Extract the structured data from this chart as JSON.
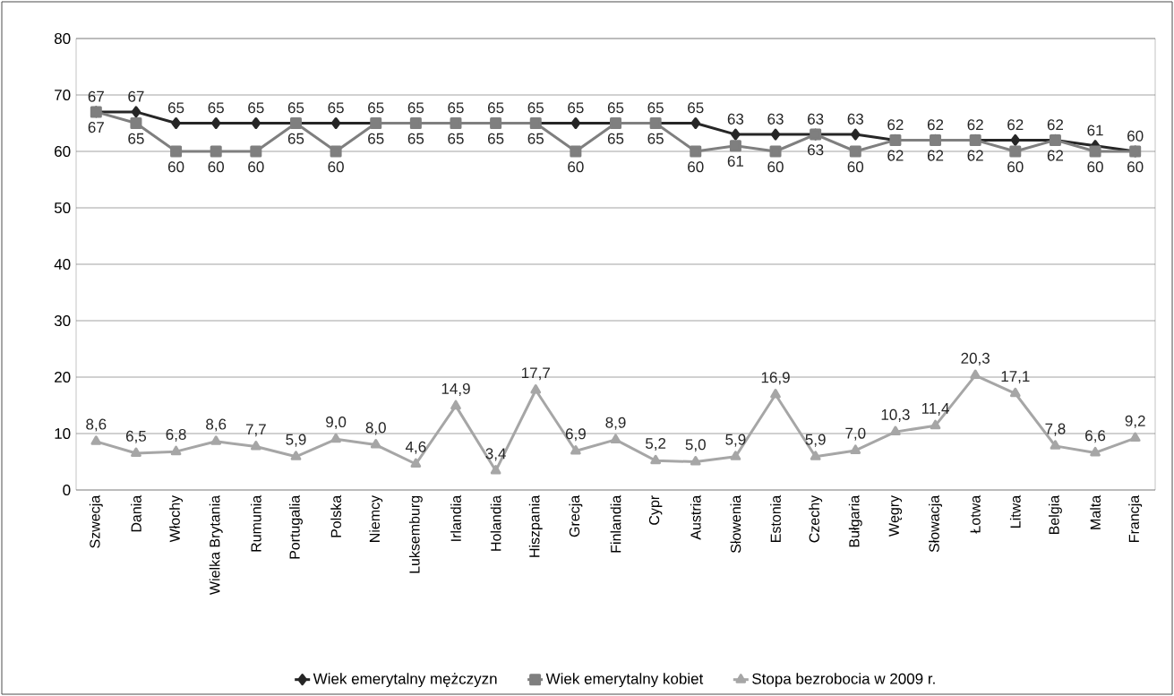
{
  "chart_data": {
    "type": "line",
    "categories": [
      "Szwecja",
      "Dania",
      "Włochy",
      "Wielka Brytania",
      "Rumunia",
      "Portugalia",
      "Polska",
      "Niemcy",
      "Luksemburg",
      "Irlandia",
      "Holandia",
      "Hiszpania",
      "Grecja",
      "Finlandia",
      "Cypr",
      "Austria",
      "Słowenia",
      "Estonia",
      "Czechy",
      "Bułgaria",
      "Węgry",
      "Słowacja",
      "Łotwa",
      "Litwa",
      "Belgia",
      "Malta",
      "Francja"
    ],
    "series": [
      {
        "name": "Wiek emerytalny mężczyzn",
        "color": "#262626",
        "marker": "diamond",
        "values": [
          67,
          67,
          65,
          65,
          65,
          65,
          65,
          65,
          65,
          65,
          65,
          65,
          65,
          65,
          65,
          65,
          63,
          63,
          63,
          63,
          62,
          62,
          62,
          62,
          62,
          61,
          60
        ],
        "value_labels": [
          "67",
          "67",
          "65",
          "65",
          "65",
          "65",
          "65",
          "65",
          "65",
          "65",
          "65",
          "65",
          "65",
          "65",
          "65",
          "65",
          "63",
          "63",
          "63",
          "63",
          "62",
          "62",
          "62",
          "62",
          "62",
          "61",
          "60"
        ]
      },
      {
        "name": "Wiek emerytalny kobiet",
        "color": "#7f7f7f",
        "marker": "square",
        "values": [
          67,
          65,
          60,
          60,
          60,
          65,
          60,
          65,
          65,
          65,
          65,
          65,
          60,
          65,
          65,
          60,
          61,
          60,
          63,
          60,
          62,
          62,
          62,
          60,
          62,
          60,
          60
        ],
        "value_labels": [
          "67",
          "65",
          "60",
          "60",
          "60",
          "65",
          "60",
          "65",
          "65",
          "65",
          "65",
          "65",
          "60",
          "65",
          "65",
          "60",
          "61",
          "60",
          "63",
          "60",
          "62",
          "62",
          "62",
          "60",
          "62",
          "60",
          "60"
        ]
      },
      {
        "name": "Stopa bezrobocia w 2009 r.",
        "color": "#a6a6a6",
        "marker": "triangle",
        "values": [
          8.6,
          6.5,
          6.8,
          8.6,
          7.7,
          5.9,
          9.0,
          8.0,
          4.6,
          14.9,
          3.4,
          17.7,
          6.9,
          8.9,
          5.2,
          5.0,
          5.9,
          16.9,
          5.9,
          7.0,
          10.3,
          11.4,
          20.3,
          17.1,
          7.8,
          6.6,
          9.2
        ],
        "value_labels": [
          "8,6",
          "6,5",
          "6,8",
          "8,6",
          "7,7",
          "5,9",
          "9,0",
          "8,0",
          "4,6",
          "14,9",
          "3,4",
          "17,7",
          "6,9",
          "8,9",
          "5,2",
          "5,0",
          "5,9",
          "16,9",
          "5,9",
          "7,0",
          "10,3",
          "11,4",
          "20,3",
          "17,1",
          "7,8",
          "6,6",
          "9,2"
        ]
      }
    ],
    "ylim": [
      0,
      80
    ],
    "yticks": [
      0,
      10,
      20,
      30,
      40,
      50,
      60,
      70,
      80
    ],
    "grid": "y",
    "legend": "bottom",
    "line_style": "solid"
  }
}
